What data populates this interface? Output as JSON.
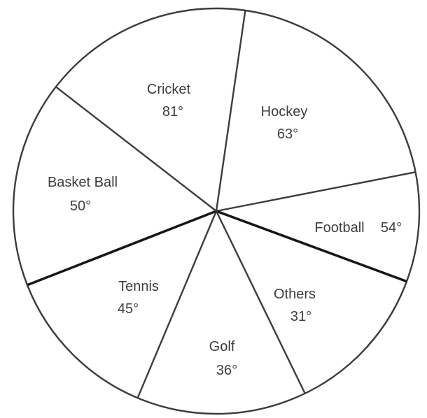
{
  "chart_data": {
    "type": "pie",
    "title": "",
    "unit": "degrees",
    "legend": "none",
    "labels_inside_slices": true,
    "categories": [
      "Cricket",
      "Hockey",
      "Football",
      "Others",
      "Golf",
      "Tennis",
      "Basket Ball"
    ],
    "values": [
      81,
      63,
      54,
      31,
      36,
      45,
      50
    ],
    "slices": [
      {
        "label": "Cricket",
        "value_label": "81°",
        "value_deg": 81
      },
      {
        "label": "Hockey",
        "value_label": "63°",
        "value_deg": 63
      },
      {
        "label": "Football",
        "value_label": "54°",
        "value_deg": 54
      },
      {
        "label": "Others",
        "value_label": "31°",
        "value_deg": 31
      },
      {
        "label": "Golf",
        "value_label": "36°",
        "value_deg": 36
      },
      {
        "label": "Tennis",
        "value_label": "45°",
        "value_deg": 45
      },
      {
        "label": "Basket Ball",
        "value_label": "50°",
        "value_deg": 50
      }
    ],
    "layout_hints": {
      "note": "figure not drawn to scale; boundary spokes measured clockwise from 12 o'clock",
      "drawn_boundaries": [
        {
          "compass_deg": 8.2,
          "thick": false
        },
        {
          "compass_deg": 78.9,
          "thick": false
        },
        {
          "compass_deg": 110.3,
          "thick": true
        },
        {
          "compass_deg": 154.1,
          "thick": false
        },
        {
          "compass_deg": 202.8,
          "thick": false
        },
        {
          "compass_deg": 248.6,
          "thick": true
        },
        {
          "compass_deg": 307.8,
          "thick": false
        }
      ]
    },
    "colors": {
      "background": "#ffffff",
      "line": "#3c3c3c",
      "thick_line": "#161616",
      "text": "#3d3d3d"
    }
  }
}
